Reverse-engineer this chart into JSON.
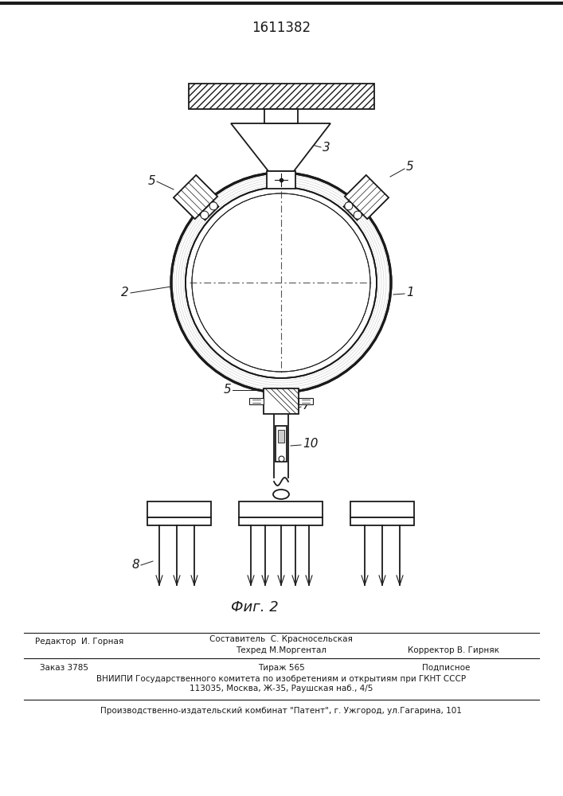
{
  "patent_number": "1611382",
  "fig_label": "Фиг. 2",
  "background_color": "#ffffff",
  "line_color": "#1a1a1a",
  "footer": {
    "editor": "Редактор  И. Горная",
    "compiler_label": "Составитель  С. Красносельская",
    "techred_label": "Техред М.Моргентал",
    "corrector_label": "Корректор В. Гирняк",
    "order": "Заказ 3785",
    "tirazh": "Тираж 565",
    "podpisnoe": "Подписное",
    "vnipi_line1": "ВНИИПИ Государственного комитета по изобретениям и открытиям при ГКНТ СССР",
    "vnipi_line2": "113035, Москва, Ж-35, Раушская наб., 4/5",
    "proizv": "Производственно-издательский комбинат \"Патент\", г. Ужгород, ул.Гагарина, 101"
  }
}
